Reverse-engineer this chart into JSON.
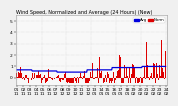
{
  "title": "Wind Speed, Normalized and Average (24 Hours) (New)",
  "bg_color": "#f0f0f0",
  "plot_bg": "#f8f8f8",
  "red_color": "#dd0000",
  "blue_color": "#0000dd",
  "ylim": [
    -0.5,
    5.5
  ],
  "ymin": 0,
  "ymax": 5,
  "n_points": 300,
  "seed": 77,
  "legend_blue_label": "Avg",
  "legend_red_label": "Norm",
  "tick_fontsize": 3.2,
  "title_fontsize": 3.5,
  "grid_color": "#bbbbbb",
  "blue_linewidth": 0.9,
  "bar_color_pos": "#cc0000",
  "bar_color_neg": "#cc0000"
}
